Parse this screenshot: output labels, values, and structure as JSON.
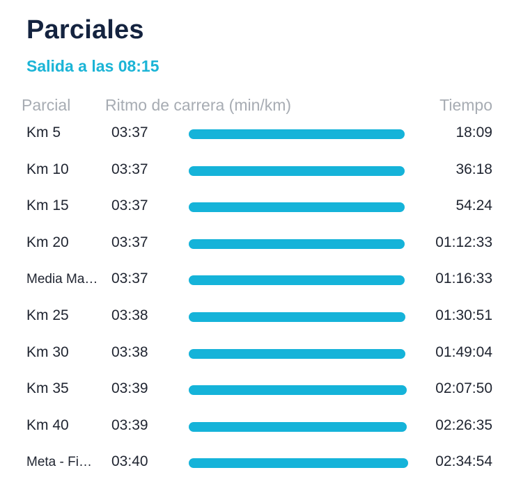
{
  "header": {
    "title": "Parciales",
    "subtitle": "Salida a las 08:15"
  },
  "columns": {
    "partial": "Parcial",
    "pace": "Ritmo de carrera (min/km)",
    "time": "Tiempo"
  },
  "splits": [
    {
      "name": "Km 5",
      "pace": "03:37",
      "time": "18:09",
      "bar_fraction": 0.969
    },
    {
      "name": "Km 10",
      "pace": "03:37",
      "time": "36:18",
      "bar_fraction": 0.969
    },
    {
      "name": "Km 15",
      "pace": "03:37",
      "time": "54:24",
      "bar_fraction": 0.969
    },
    {
      "name": "Km 20",
      "pace": "03:37",
      "time": "01:12:33",
      "bar_fraction": 0.969
    },
    {
      "name": "Media Ma…",
      "pace": "03:37",
      "time": "01:16:33",
      "bar_fraction": 0.969
    },
    {
      "name": "Km 25",
      "pace": "03:38",
      "time": "01:30:51",
      "bar_fraction": 0.972
    },
    {
      "name": "Km 30",
      "pace": "03:38",
      "time": "01:49:04",
      "bar_fraction": 0.972
    },
    {
      "name": "Km 35",
      "pace": "03:39",
      "time": "02:07:50",
      "bar_fraction": 0.978
    },
    {
      "name": "Km 40",
      "pace": "03:39",
      "time": "02:26:35",
      "bar_fraction": 0.978
    },
    {
      "name": "Meta - Fi…",
      "pace": "03:40",
      "time": "02:34:54",
      "bar_fraction": 0.984
    }
  ],
  "colors": {
    "accent": "#15b3d9",
    "title": "#14233f",
    "muted": "#a7acb3"
  }
}
